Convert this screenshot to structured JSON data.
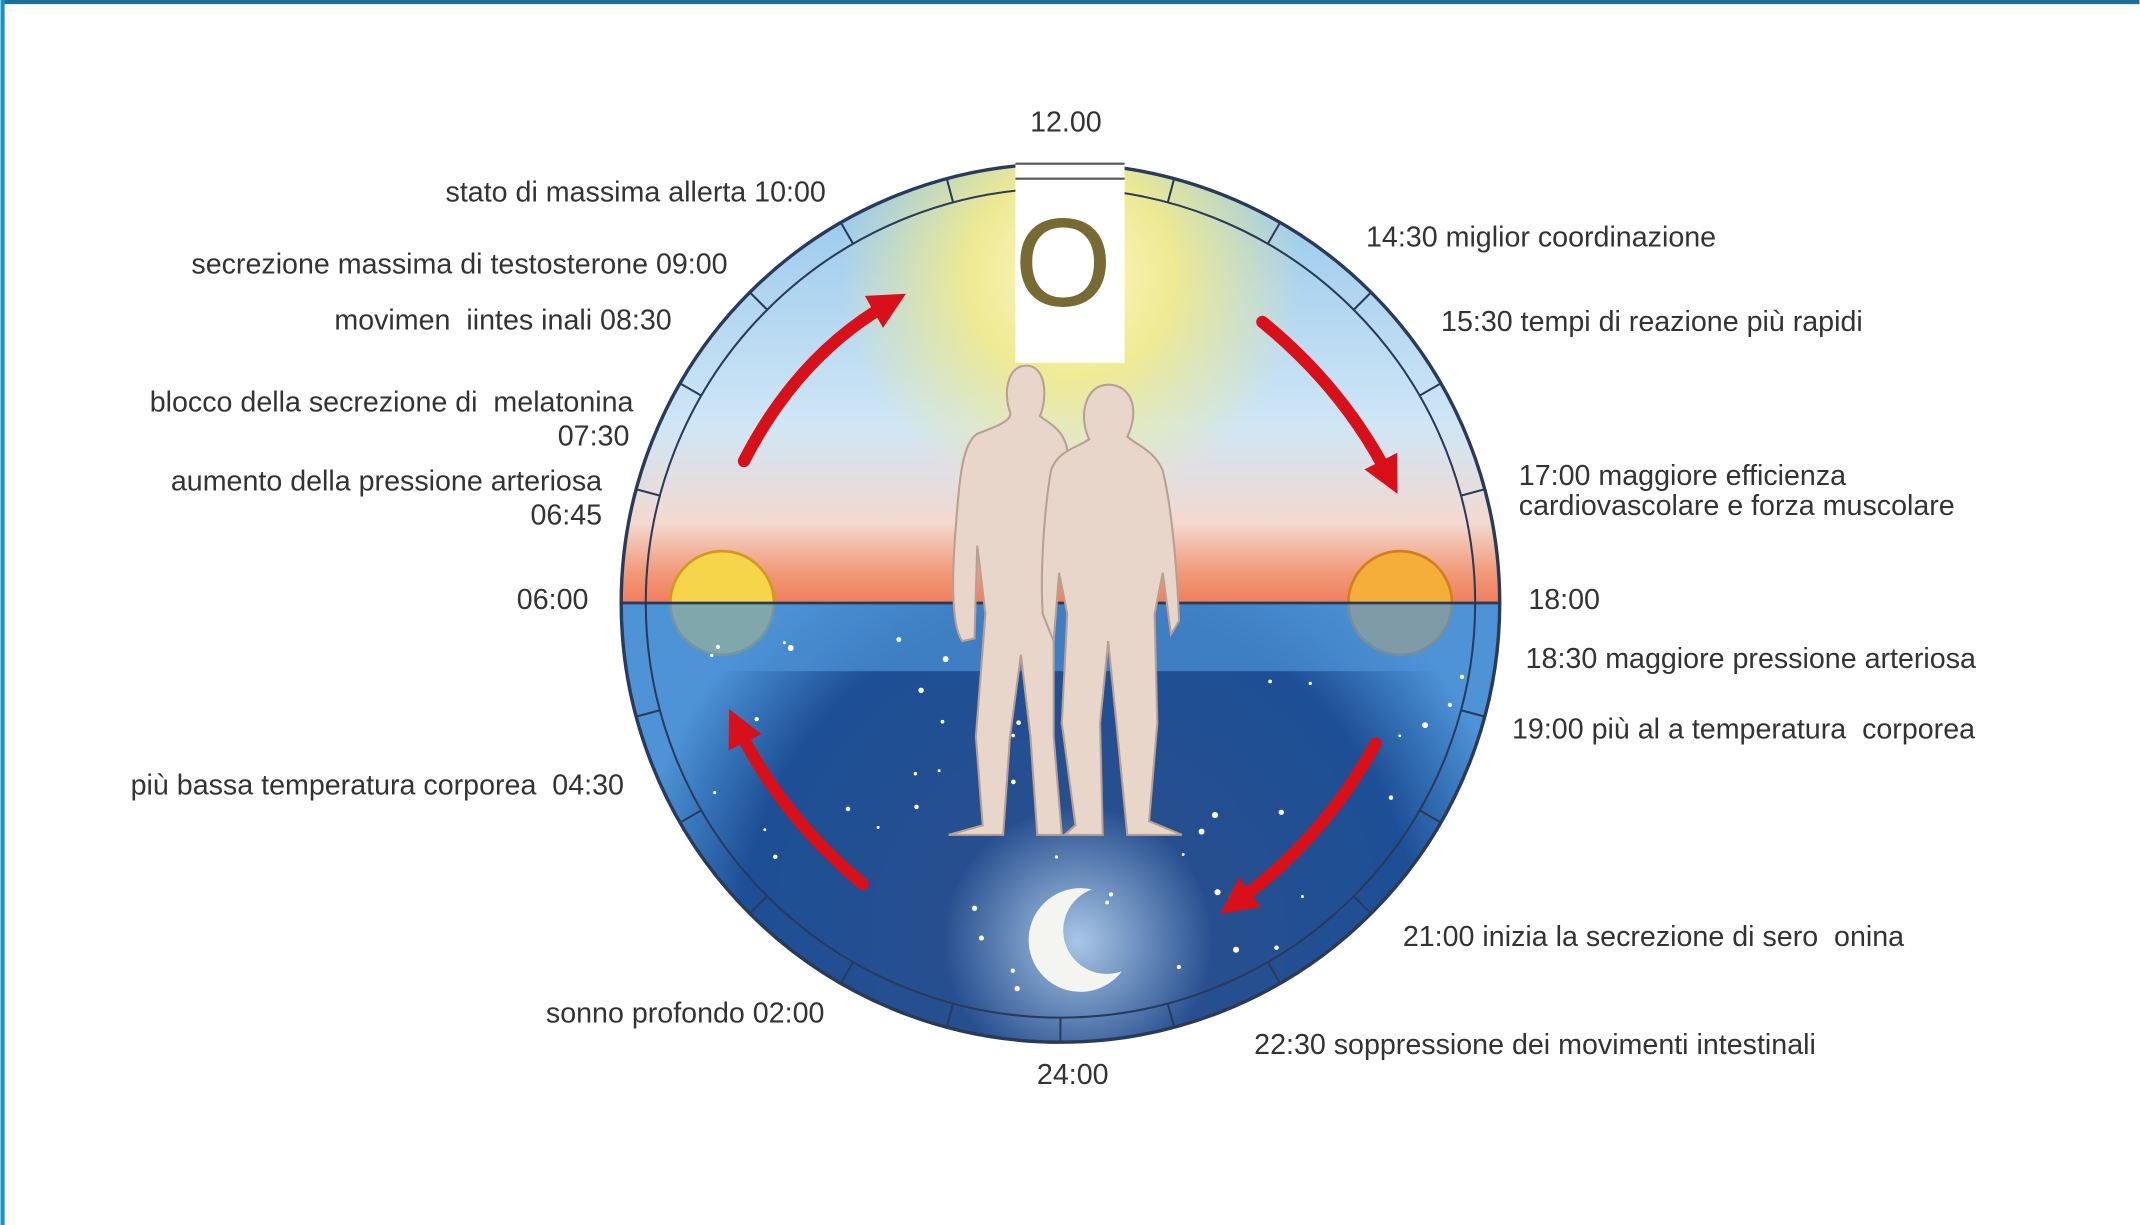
{
  "hours": {
    "top": "12.00",
    "right": "18:00",
    "bottom": "24:00",
    "left": "06:00"
  },
  "center_letter": "O",
  "left_events": [
    {
      "lines": [
        "stato di massima allerta 10:00"
      ]
    },
    {
      "lines": [
        "secrezione massima di testosterone 09:00"
      ]
    },
    {
      "lines": [
        "movimen  iintes inali 08:30"
      ]
    },
    {
      "lines": [
        "blocco della secrezione di  melatonina",
        "07:30"
      ]
    },
    {
      "lines": [
        "aumento della pressione arteriosa",
        "06:45"
      ]
    },
    {
      "lines": [
        "più bassa temperatura corporea  04:30"
      ]
    },
    {
      "lines": [
        "sonno profondo 02:00"
      ]
    }
  ],
  "right_events": [
    {
      "lines": [
        "14:30 miglior coordinazione"
      ]
    },
    {
      "lines": [
        "15:30 tempi di reazione più rapidi"
      ]
    },
    {
      "lines": [
        "17:00 maggiore efficienza",
        "cardiovascolare e forza muscolare"
      ]
    },
    {
      "lines": [
        "18:30 maggiore pressione arteriosa"
      ]
    },
    {
      "lines": [
        "19:00 più al a temperatura  corporea"
      ]
    },
    {
      "lines": [
        "21:00 inizia la secrezione di sero  onina"
      ]
    },
    {
      "lines": [
        "22:30 soppressione dei movimenti intestinali"
      ]
    }
  ]
}
